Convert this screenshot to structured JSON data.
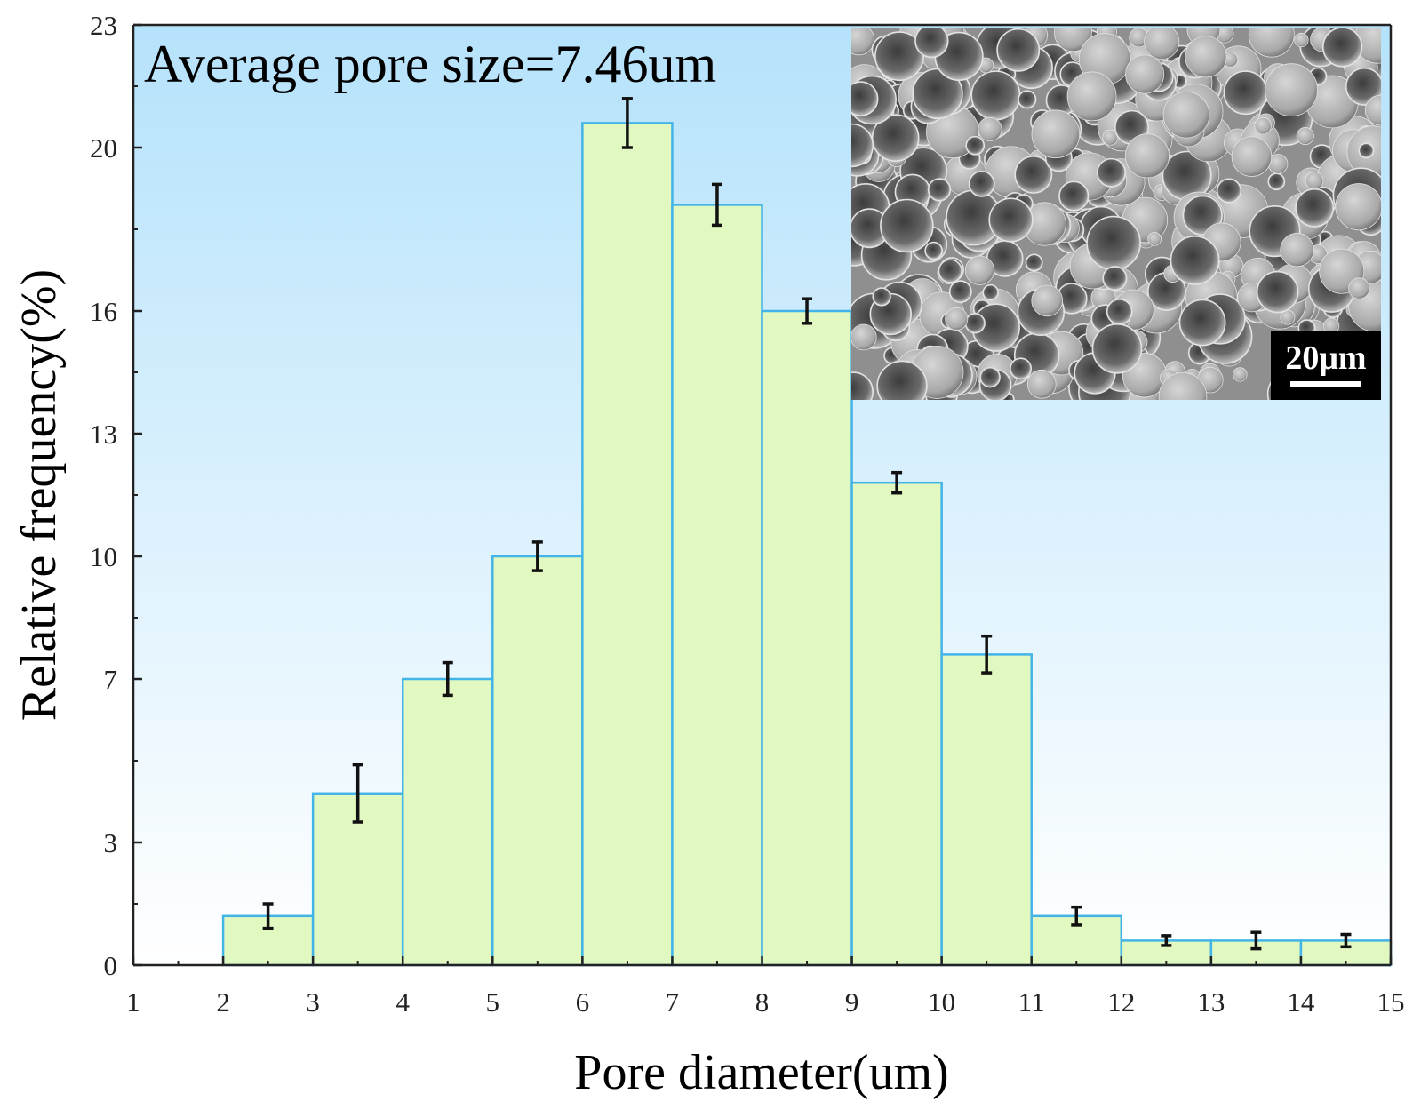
{
  "chart_data": {
    "type": "bar",
    "xlabel": "Pore diameter(um)",
    "ylabel": "Relative frequency(%)",
    "annotation": "Average pore size=7.46um",
    "xlim": [
      1,
      15
    ],
    "ylim": [
      0,
      23
    ],
    "x_ticks": [
      1,
      2,
      3,
      4,
      5,
      6,
      7,
      8,
      9,
      10,
      11,
      12,
      13,
      14,
      15
    ],
    "y_ticks": [
      0,
      3,
      7,
      10,
      13,
      16,
      20,
      23
    ],
    "bins": [
      {
        "x0": 2,
        "x1": 3,
        "value": 1.2,
        "error": 0.3
      },
      {
        "x0": 3,
        "x1": 4,
        "value": 4.2,
        "error": 0.7
      },
      {
        "x0": 4,
        "x1": 5,
        "value": 7.0,
        "error": 0.4
      },
      {
        "x0": 5,
        "x1": 6,
        "value": 10.0,
        "error": 0.35
      },
      {
        "x0": 6,
        "x1": 7,
        "value": 20.6,
        "error": 0.6
      },
      {
        "x0": 7,
        "x1": 8,
        "value": 18.6,
        "error": 0.5
      },
      {
        "x0": 8,
        "x1": 9,
        "value": 16.0,
        "error": 0.3
      },
      {
        "x0": 9,
        "x1": 10,
        "value": 11.8,
        "error": 0.25
      },
      {
        "x0": 10,
        "x1": 11,
        "value": 7.6,
        "error": 0.45
      },
      {
        "x0": 11,
        "x1": 12,
        "value": 1.2,
        "error": 0.22
      },
      {
        "x0": 12,
        "x1": 13,
        "value": 0.6,
        "error": 0.12
      },
      {
        "x0": 13,
        "x1": 14,
        "value": 0.6,
        "error": 0.2
      },
      {
        "x0": 14,
        "x1": 15,
        "value": 0.6,
        "error": 0.15
      }
    ],
    "grid": false,
    "colors": {
      "bar_fill": "#e1f8c0",
      "bar_edge": "#43b4e8",
      "error_bar": "#111111",
      "background_top": "#b5e2fb",
      "background_bottom": "#ffffff"
    }
  },
  "inset": {
    "kind": "sem-micrograph",
    "scale_bar_label": "20μm"
  }
}
